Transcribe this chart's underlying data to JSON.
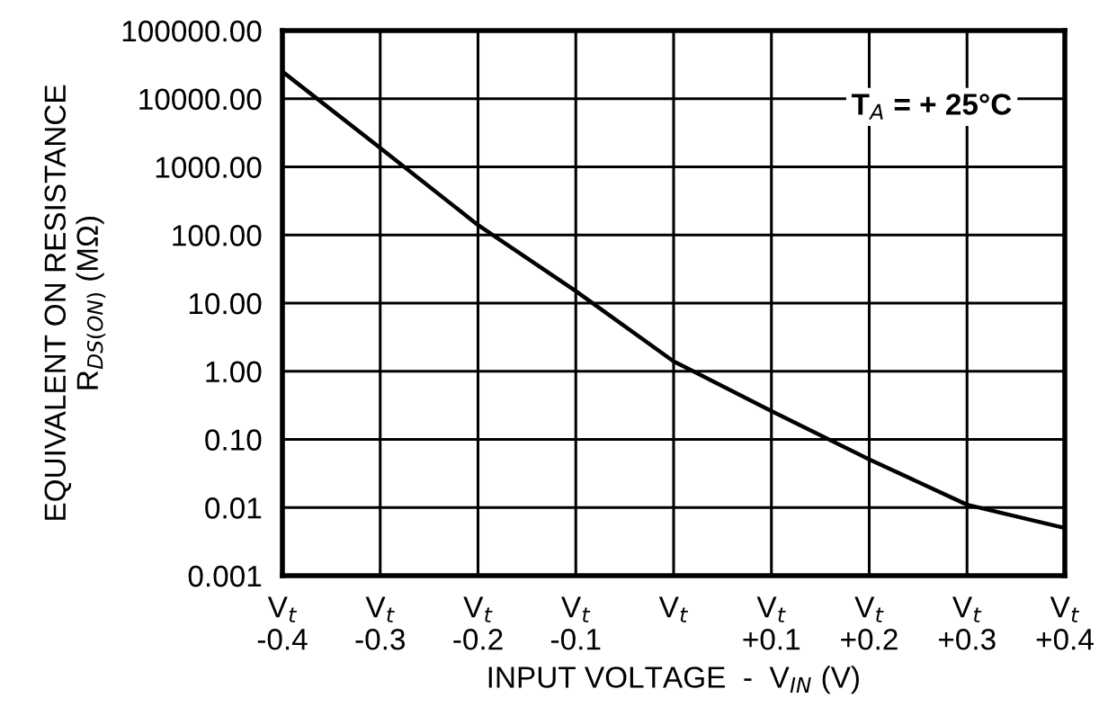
{
  "chart_data": {
    "type": "line",
    "xlabel": "INPUT VOLTAGE  -  V$_{IN}$ (V)",
    "ylabel": "EQUIVALENT ON RESISTANCE\nR$_{DS(ON)}$ (MΩ)",
    "annotations": [
      "T$_{A}$ = + 25°C"
    ],
    "x": [
      -0.4,
      -0.3,
      -0.2,
      -0.1,
      0,
      0.1,
      0.2,
      0.3,
      0.4
    ],
    "series": [
      {
        "color": "#000000",
        "values": [
          25000,
          1900,
          140,
          15,
          1.4,
          0.26,
          0.051,
          0.011,
          0.005
        ]
      }
    ],
    "log": "y",
    "grid": true,
    "marker": "none",
    "line_style": "solid",
    "xlim": [
      -0.4,
      0.4
    ],
    "xticks": [
      {
        "value": -0.4,
        "label": "V$_{t}$\n-0.4"
      },
      {
        "value": -0.3,
        "label": "V$_{t}$\n-0.3"
      },
      {
        "value": -0.2,
        "label": "V$_{t}$\n-0.2"
      },
      {
        "value": -0.1,
        "label": "V$_{t}$\n-0.1"
      },
      {
        "value": 0,
        "label": "V$_{t}$"
      },
      {
        "value": 0.1,
        "label": "V$_{t}$\n+0.1"
      },
      {
        "value": 0.2,
        "label": "V$_{t}$\n+0.2"
      },
      {
        "value": 0.3,
        "label": "V$_{t}$\n+0.3"
      },
      {
        "value": 0.4,
        "label": "V$_{t}$\n+0.4"
      }
    ],
    "ylim": [
      0.001,
      100000
    ],
    "yticks": [
      {
        "value": 0.001,
        "label": "0.001"
      },
      {
        "value": 0.01,
        "label": "0.01"
      },
      {
        "value": 0.1,
        "label": "0.10"
      },
      {
        "value": 1,
        "label": "1.00"
      },
      {
        "value": 10,
        "label": "10.00"
      },
      {
        "value": 100,
        "label": "100.00"
      },
      {
        "value": 1000,
        "label": "1000.00"
      },
      {
        "value": 10000,
        "label": "10000.00"
      },
      {
        "value": 100000,
        "label": "100000.00"
      }
    ]
  }
}
